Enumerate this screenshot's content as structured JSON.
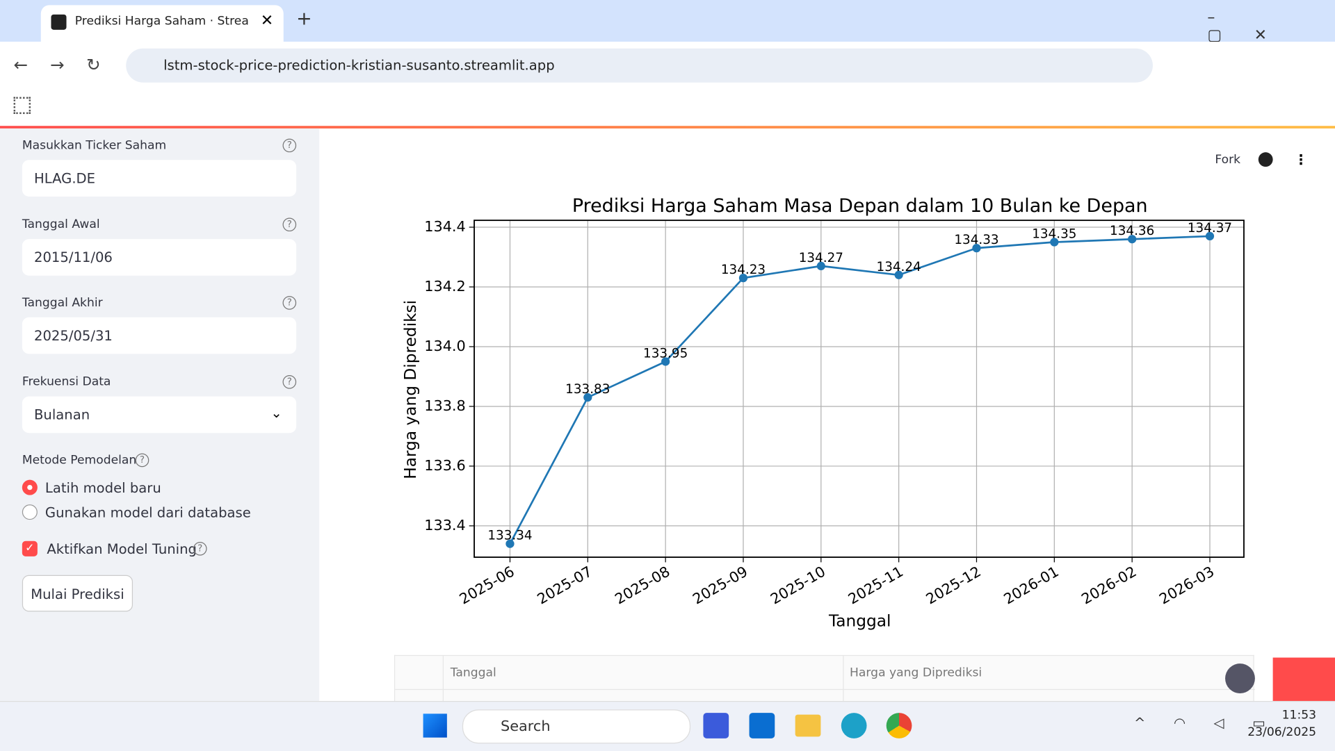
{
  "browser": {
    "tab_title": "Prediksi Harga Saham · Streamlit",
    "url": "lstm-stock-price-prediction-kristian-susanto.streamlit.app"
  },
  "sidebar": {
    "fields": [
      {
        "label": "Masukkan Ticker Saham",
        "value": "HLAG.DE"
      },
      {
        "label": "Tanggal Awal",
        "value": "2015/11/06"
      },
      {
        "label": "Tanggal Akhir",
        "value": "2025/05/31"
      },
      {
        "label": "Frekuensi Data",
        "value": "Bulanan"
      }
    ],
    "method": {
      "label": "Metode Pemodelan",
      "options": [
        "Latih model baru",
        "Gunakan model dari database"
      ]
    },
    "tuning": "Aktifkan Model Tuning",
    "button": "Mulai Prediksi"
  },
  "toolbar": {
    "fork": "Fork"
  },
  "chart_data": {
    "type": "line",
    "title": "Prediksi Harga Saham Masa Depan dalam 10 Bulan ke Depan",
    "x_label": "Tanggal",
    "y_label": "Harga yang Diprediksi",
    "categories": [
      "2025-06",
      "2025-07",
      "2025-08",
      "2025-09",
      "2025-10",
      "2025-11",
      "2025-12",
      "2026-01",
      "2026-02",
      "2026-03"
    ],
    "values": [
      133.34,
      133.83,
      133.95,
      134.23,
      134.27,
      134.24,
      134.33,
      134.35,
      134.36,
      134.37
    ],
    "color": "#1f77b4",
    "ylim": [
      133.295,
      134.423
    ],
    "yticks": [
      133.4,
      133.6,
      133.8,
      {
        "value": 134,
        "label": "134.0"
      },
      134.2,
      134.4
    ],
    "grid": true
  },
  "table": {
    "columns": [
      "Tanggal",
      "Harga yang Diprediksi"
    ]
  },
  "taskbar": {
    "search": "Search",
    "time": "11:53",
    "date": "23/06/2025"
  }
}
